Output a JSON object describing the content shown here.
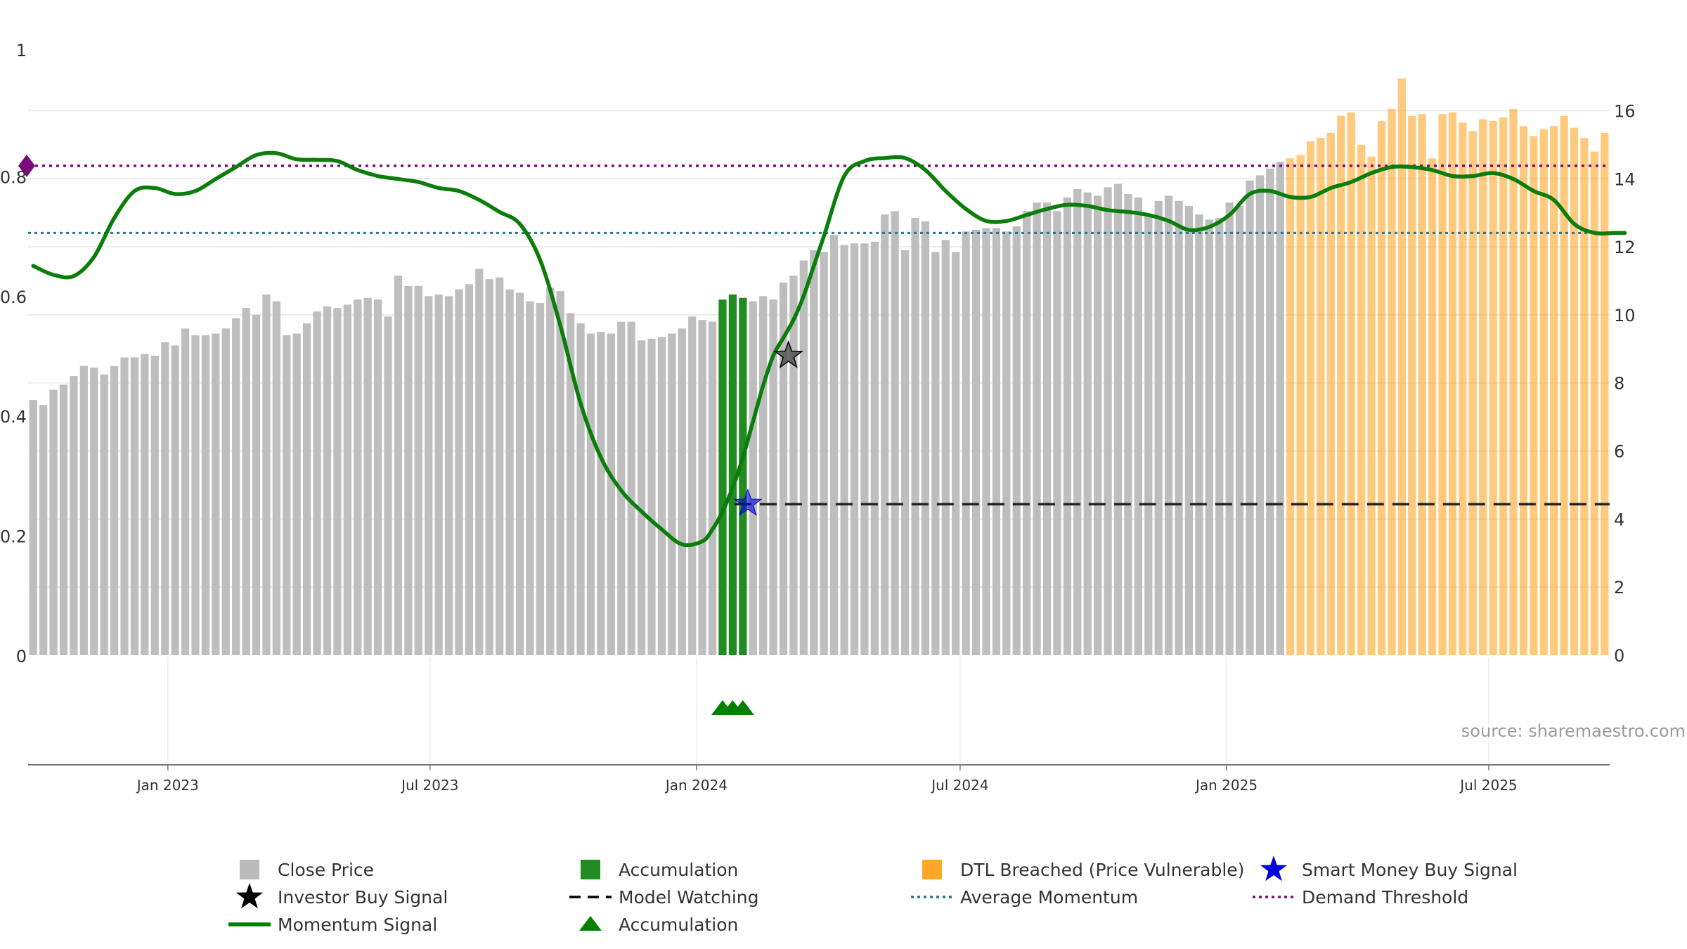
{
  "chart_data": {
    "type": "bar+line",
    "title": "",
    "source": "source: sharemaestro.com",
    "x_ticks": [
      "Jan 2023",
      "Jul 2023",
      "Jan 2024",
      "Jul 2024",
      "Jan 2025",
      "Jul 2025"
    ],
    "y_left": {
      "range": [
        0,
        1
      ],
      "ticks": [
        "0",
        "0.2",
        "0.4",
        "0.6",
        "0.8",
        "1"
      ]
    },
    "y_right": {
      "range": [
        0,
        17.6
      ],
      "ticks": [
        "0",
        "2",
        "4",
        "6",
        "8",
        "10",
        "12",
        "14",
        "16"
      ]
    },
    "close_price": {
      "start_date": "2022-09-30",
      "interval_days": 7,
      "values": [
        7.5,
        7.35,
        7.8,
        7.95,
        8.2,
        8.5,
        8.45,
        8.25,
        8.5,
        8.75,
        8.75,
        8.85,
        8.8,
        9.2,
        9.1,
        9.6,
        9.4,
        9.4,
        9.45,
        9.6,
        9.9,
        10.2,
        10.0,
        10.6,
        10.4,
        9.4,
        9.45,
        9.75,
        10.1,
        10.25,
        10.2,
        10.3,
        10.45,
        10.5,
        10.45,
        9.95,
        11.15,
        10.85,
        10.85,
        10.55,
        10.6,
        10.55,
        10.75,
        10.9,
        11.35,
        11.05,
        11.1,
        10.75,
        10.65,
        10.4,
        10.35,
        10.8,
        10.7,
        10.05,
        9.75,
        9.45,
        9.5,
        9.45,
        9.8,
        9.8,
        9.25,
        9.3,
        9.35,
        9.45,
        9.6,
        9.95,
        9.85,
        9.8,
        10.45,
        10.6,
        10.5,
        10.4,
        10.55,
        10.45,
        10.95,
        11.15,
        11.6,
        11.9,
        11.85,
        12.35,
        12.05,
        12.1,
        12.1,
        12.15,
        12.95,
        13.05,
        11.9,
        12.85,
        12.75,
        11.85,
        12.2,
        11.85,
        12.45,
        12.5,
        12.55,
        12.55,
        12.45,
        12.6,
        13.05,
        13.3,
        13.3,
        13.05,
        13.45,
        13.7,
        13.6,
        13.5,
        13.75,
        13.85,
        13.55,
        13.45,
        12.9,
        13.35,
        13.5,
        13.35,
        13.2,
        12.95,
        12.8,
        12.85,
        13.3,
        13.2,
        13.95,
        14.1,
        14.3,
        14.5,
        14.6,
        14.7,
        15.1,
        15.2,
        15.35,
        15.85,
        15.95,
        15.0,
        14.65,
        15.7,
        16.05,
        16.95,
        15.85,
        15.9,
        14.6,
        15.9,
        15.95,
        15.65,
        15.4,
        15.75,
        15.7,
        15.8,
        16.05,
        15.55,
        15.25,
        15.45,
        15.55,
        15.85,
        15.5,
        15.2,
        14.8,
        15.35
      ]
    },
    "dtl_breached_start_index": 124,
    "accumulation_bar_indices": [
      68,
      69,
      70
    ],
    "momentum_signal": {
      "x_index": [
        0,
        2,
        4,
        6,
        8,
        10,
        12,
        14,
        16,
        18,
        20,
        22,
        24,
        26,
        28,
        30,
        32,
        34,
        36,
        38,
        40,
        42,
        44,
        46,
        48,
        50,
        52,
        54,
        56,
        58,
        60,
        62,
        64,
        66,
        67,
        68,
        69,
        70,
        71,
        72,
        73,
        74,
        75,
        76,
        77,
        78,
        80,
        82,
        84,
        86,
        88,
        90,
        92,
        94,
        96,
        98,
        100,
        102,
        104,
        106,
        108,
        110,
        112,
        114,
        116,
        118,
        120,
        122,
        124,
        126,
        128,
        130,
        132,
        134,
        136,
        138,
        140,
        142,
        144,
        146,
        148,
        150,
        152,
        154,
        156,
        157
      ],
      "values": [
        0.65,
        0.635,
        0.633,
        0.665,
        0.73,
        0.775,
        0.78,
        0.77,
        0.775,
        0.795,
        0.815,
        0.835,
        0.838,
        0.828,
        0.827,
        0.825,
        0.81,
        0.8,
        0.795,
        0.79,
        0.78,
        0.775,
        0.76,
        0.74,
        0.72,
        0.66,
        0.55,
        0.42,
        0.33,
        0.275,
        0.24,
        0.21,
        0.185,
        0.19,
        0.21,
        0.24,
        0.28,
        0.33,
        0.39,
        0.45,
        0.5,
        0.53,
        0.56,
        0.6,
        0.65,
        0.7,
        0.8,
        0.825,
        0.83,
        0.83,
        0.81,
        0.775,
        0.745,
        0.725,
        0.725,
        0.735,
        0.745,
        0.752,
        0.75,
        0.743,
        0.74,
        0.735,
        0.725,
        0.71,
        0.715,
        0.735,
        0.77,
        0.775,
        0.765,
        0.765,
        0.78,
        0.79,
        0.805,
        0.815,
        0.815,
        0.81,
        0.8,
        0.8,
        0.805,
        0.795,
        0.775,
        0.76,
        0.72,
        0.705,
        0.705,
        0.705
      ]
    },
    "average_momentum": 0.705,
    "demand_threshold": 0.817,
    "model_watching_level": 0.252,
    "model_watching_start_index": 70,
    "investor_buy_signal": {
      "x_index": 74.5,
      "value": 0.5
    },
    "smart_money_buy_signal": {
      "x_index": 70.5,
      "value": 0.253
    },
    "accumulation_markers_x_index": [
      68,
      69,
      70
    ],
    "legend": [
      {
        "label": "Close Price",
        "symbol": "square",
        "color": "#bbbbbb"
      },
      {
        "label": "Accumulation",
        "symbol": "square",
        "color": "#228b22"
      },
      {
        "label": "DTL Breached (Price Vulnerable)",
        "symbol": "square",
        "color": "#ffa726"
      },
      {
        "label": "Smart Money Buy Signal",
        "symbol": "star",
        "color": "#0000dd"
      },
      {
        "label": "Investor Buy Signal",
        "symbol": "star",
        "color": "#000000"
      },
      {
        "label": "Model Watching",
        "symbol": "dash",
        "color": "#000000"
      },
      {
        "label": "Average Momentum",
        "symbol": "dot",
        "color": "#2a7490"
      },
      {
        "label": "Demand Threshold",
        "symbol": "dot",
        "color": "#7a0a7a"
      },
      {
        "label": "Momentum Signal",
        "symbol": "line",
        "color": "#008000"
      },
      {
        "label": "Accumulation",
        "symbol": "triangle",
        "color": "#008000"
      }
    ],
    "colors": {
      "close_bar": "#bbbbbb",
      "accumulation_bar": "#228b22",
      "dtl_bar": "#ffa726",
      "momentum": "#0b7d0b",
      "avg_momentum": "#2a7490",
      "demand": "#7a0a7a",
      "watching": "#222222",
      "smart_money": "#0000dd",
      "investor": "#000000"
    }
  }
}
